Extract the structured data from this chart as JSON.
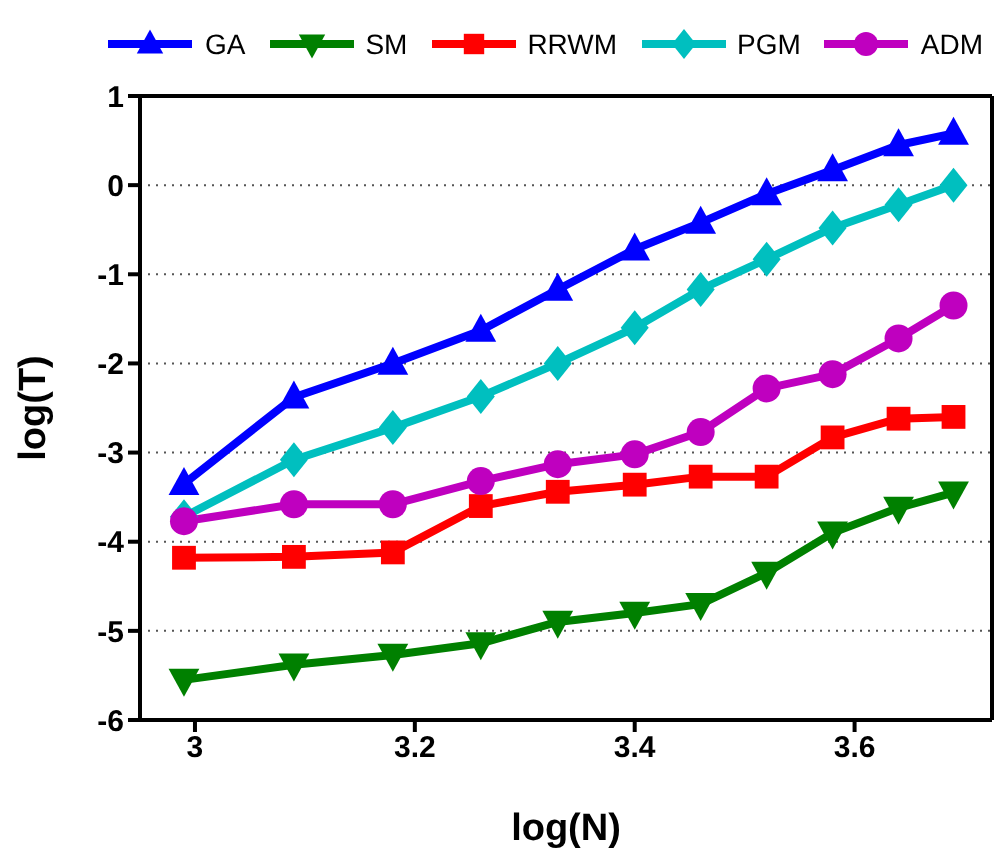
{
  "chart_data": {
    "type": "line",
    "xlabel": "log(N)",
    "ylabel": "log(T)",
    "x": [
      2.99,
      3.09,
      3.18,
      3.26,
      3.33,
      3.4,
      3.46,
      3.52,
      3.58,
      3.64,
      3.69
    ],
    "xlim": [
      2.95,
      3.725
    ],
    "xticks": [
      3,
      3.2,
      3.4,
      3.6
    ],
    "ylim": [
      -6,
      1
    ],
    "yticks": [
      -6,
      -5,
      -4,
      -3,
      -2,
      -1,
      0,
      1
    ],
    "grid": "y",
    "legend": "top",
    "line_style": "solid",
    "series": [
      {
        "name": "GA",
        "color": "#0000ff",
        "marker": "triangle",
        "values": [
          -3.35,
          -2.38,
          -2.0,
          -1.63,
          -1.17,
          -0.72,
          -0.42,
          -0.1,
          0.17,
          0.45,
          0.58
        ]
      },
      {
        "name": "SM",
        "color": "#008000",
        "marker": "triangle-down",
        "values": [
          -5.55,
          -5.38,
          -5.27,
          -5.14,
          -4.9,
          -4.8,
          -4.7,
          -4.35,
          -3.9,
          -3.62,
          -3.45
        ]
      },
      {
        "name": "RRWM",
        "color": "#ff0000",
        "marker": "square",
        "values": [
          -4.18,
          -4.17,
          -4.12,
          -3.6,
          -3.44,
          -3.36,
          -3.27,
          -3.27,
          -2.83,
          -2.62,
          -2.6
        ]
      },
      {
        "name": "PGM",
        "color": "#00bfbf",
        "marker": "diamond",
        "values": [
          -3.72,
          -3.08,
          -2.72,
          -2.37,
          -2.0,
          -1.6,
          -1.17,
          -0.83,
          -0.48,
          -0.22,
          0.0
        ]
      },
      {
        "name": "ADM",
        "color": "#bf00bf",
        "marker": "circle",
        "values": [
          -3.77,
          -3.58,
          -3.58,
          -3.32,
          -3.13,
          -3.02,
          -2.77,
          -2.28,
          -2.12,
          -1.72,
          -1.35
        ]
      }
    ]
  }
}
